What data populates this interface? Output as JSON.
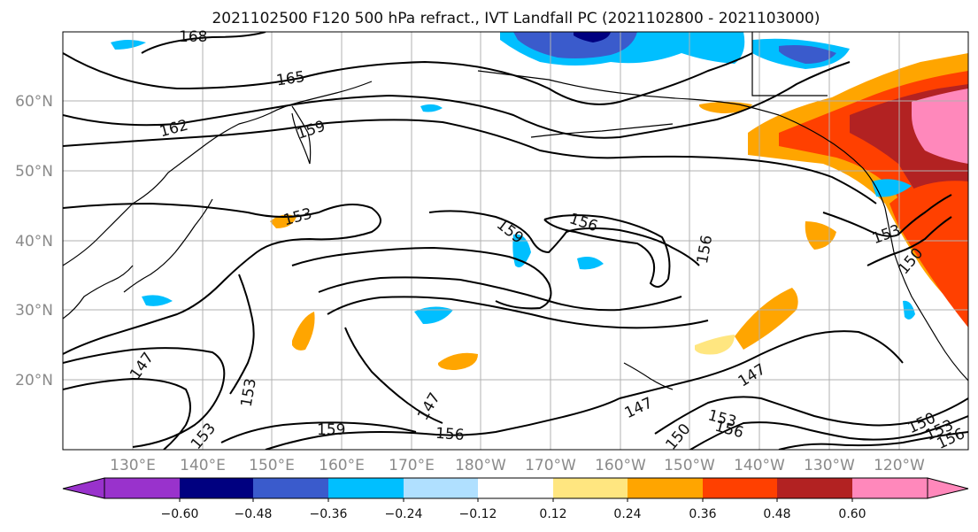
{
  "figure": {
    "title": "2021102500 F120 500 hPa refract., IVT Landfall PC (2021102800 - 2021103000)",
    "lat_labels": [
      "60°N",
      "50°N",
      "40°N",
      "30°N",
      "20°N"
    ],
    "lon_labels": [
      "130°E",
      "140°E",
      "150°E",
      "160°E",
      "170°E",
      "180°W",
      "170°W",
      "160°W",
      "150°W",
      "140°W",
      "130°W",
      "120°W"
    ]
  },
  "colorbar": {
    "tick_labels": [
      "−0.60",
      "−0.48",
      "−0.36",
      "−0.24",
      "−0.12",
      "0.12",
      "0.24",
      "0.36",
      "0.48",
      "0.60"
    ],
    "colors": [
      "#9932CC",
      "#000080",
      "#3A5BCC",
      "#00BFFF",
      "#B0E0FF",
      "#FFFFFF",
      "#FFE680",
      "#FFA500",
      "#FF4000",
      "#B22222",
      "#FF88BB"
    ],
    "extend": "both"
  },
  "contour_labels": [
    "168",
    "165",
    "162",
    "159",
    "153",
    "156",
    "159",
    "156",
    "153",
    "150",
    "147",
    "153",
    "153",
    "147",
    "159",
    "156",
    "147",
    "150",
    "153",
    "156",
    "147",
    "150",
    "153",
    "156"
  ]
}
